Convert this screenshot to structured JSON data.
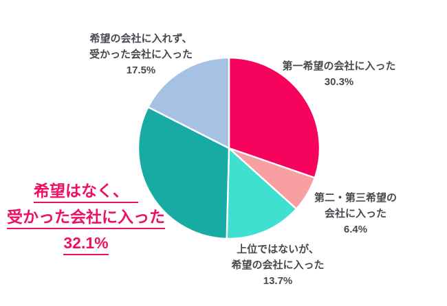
{
  "chart_data": {
    "type": "pie",
    "title": "",
    "start_angle_deg": 0,
    "direction": "clockwise",
    "grid": false,
    "legend_position": "outside-callout-labels",
    "categories": [
      "第一希望の会社に入った",
      "第二・第三希望の会社に入った",
      "上位ではないが、希望の会社に入った",
      "希望はなく、受かった会社に入った",
      "希望の会社に入れず、受かった会社に入った"
    ],
    "values": [
      30.3,
      6.4,
      13.7,
      32.1,
      17.5
    ],
    "colors": [
      "#F6035E",
      "#F99FA2",
      "#40E0D1",
      "#18ABA3",
      "#A5C1E4"
    ],
    "slice_border_color": "#FFFFFF"
  },
  "labels": {
    "first_choice": {
      "lines": [
        "第一希望の会社に入った"
      ],
      "pct": "30.3%"
    },
    "second_third_choice": {
      "lines": [
        "第二・第三希望の",
        "会社に入った"
      ],
      "pct": "6.4%"
    },
    "not_top_but_desired": {
      "lines": [
        "上位ではないが、",
        "希望の会社に入った"
      ],
      "pct": "13.7%"
    },
    "no_preference": {
      "lines": [
        "希望はなく、",
        "受かった会社に入った"
      ],
      "pct": "32.1%"
    },
    "not_desired_company": {
      "lines": [
        "希望の会社に入れず、",
        "受かった会社に入った"
      ],
      "pct": "17.5%"
    }
  },
  "style": {
    "accent_pink": "#EE0E63",
    "label_text_color": "#45484E"
  }
}
